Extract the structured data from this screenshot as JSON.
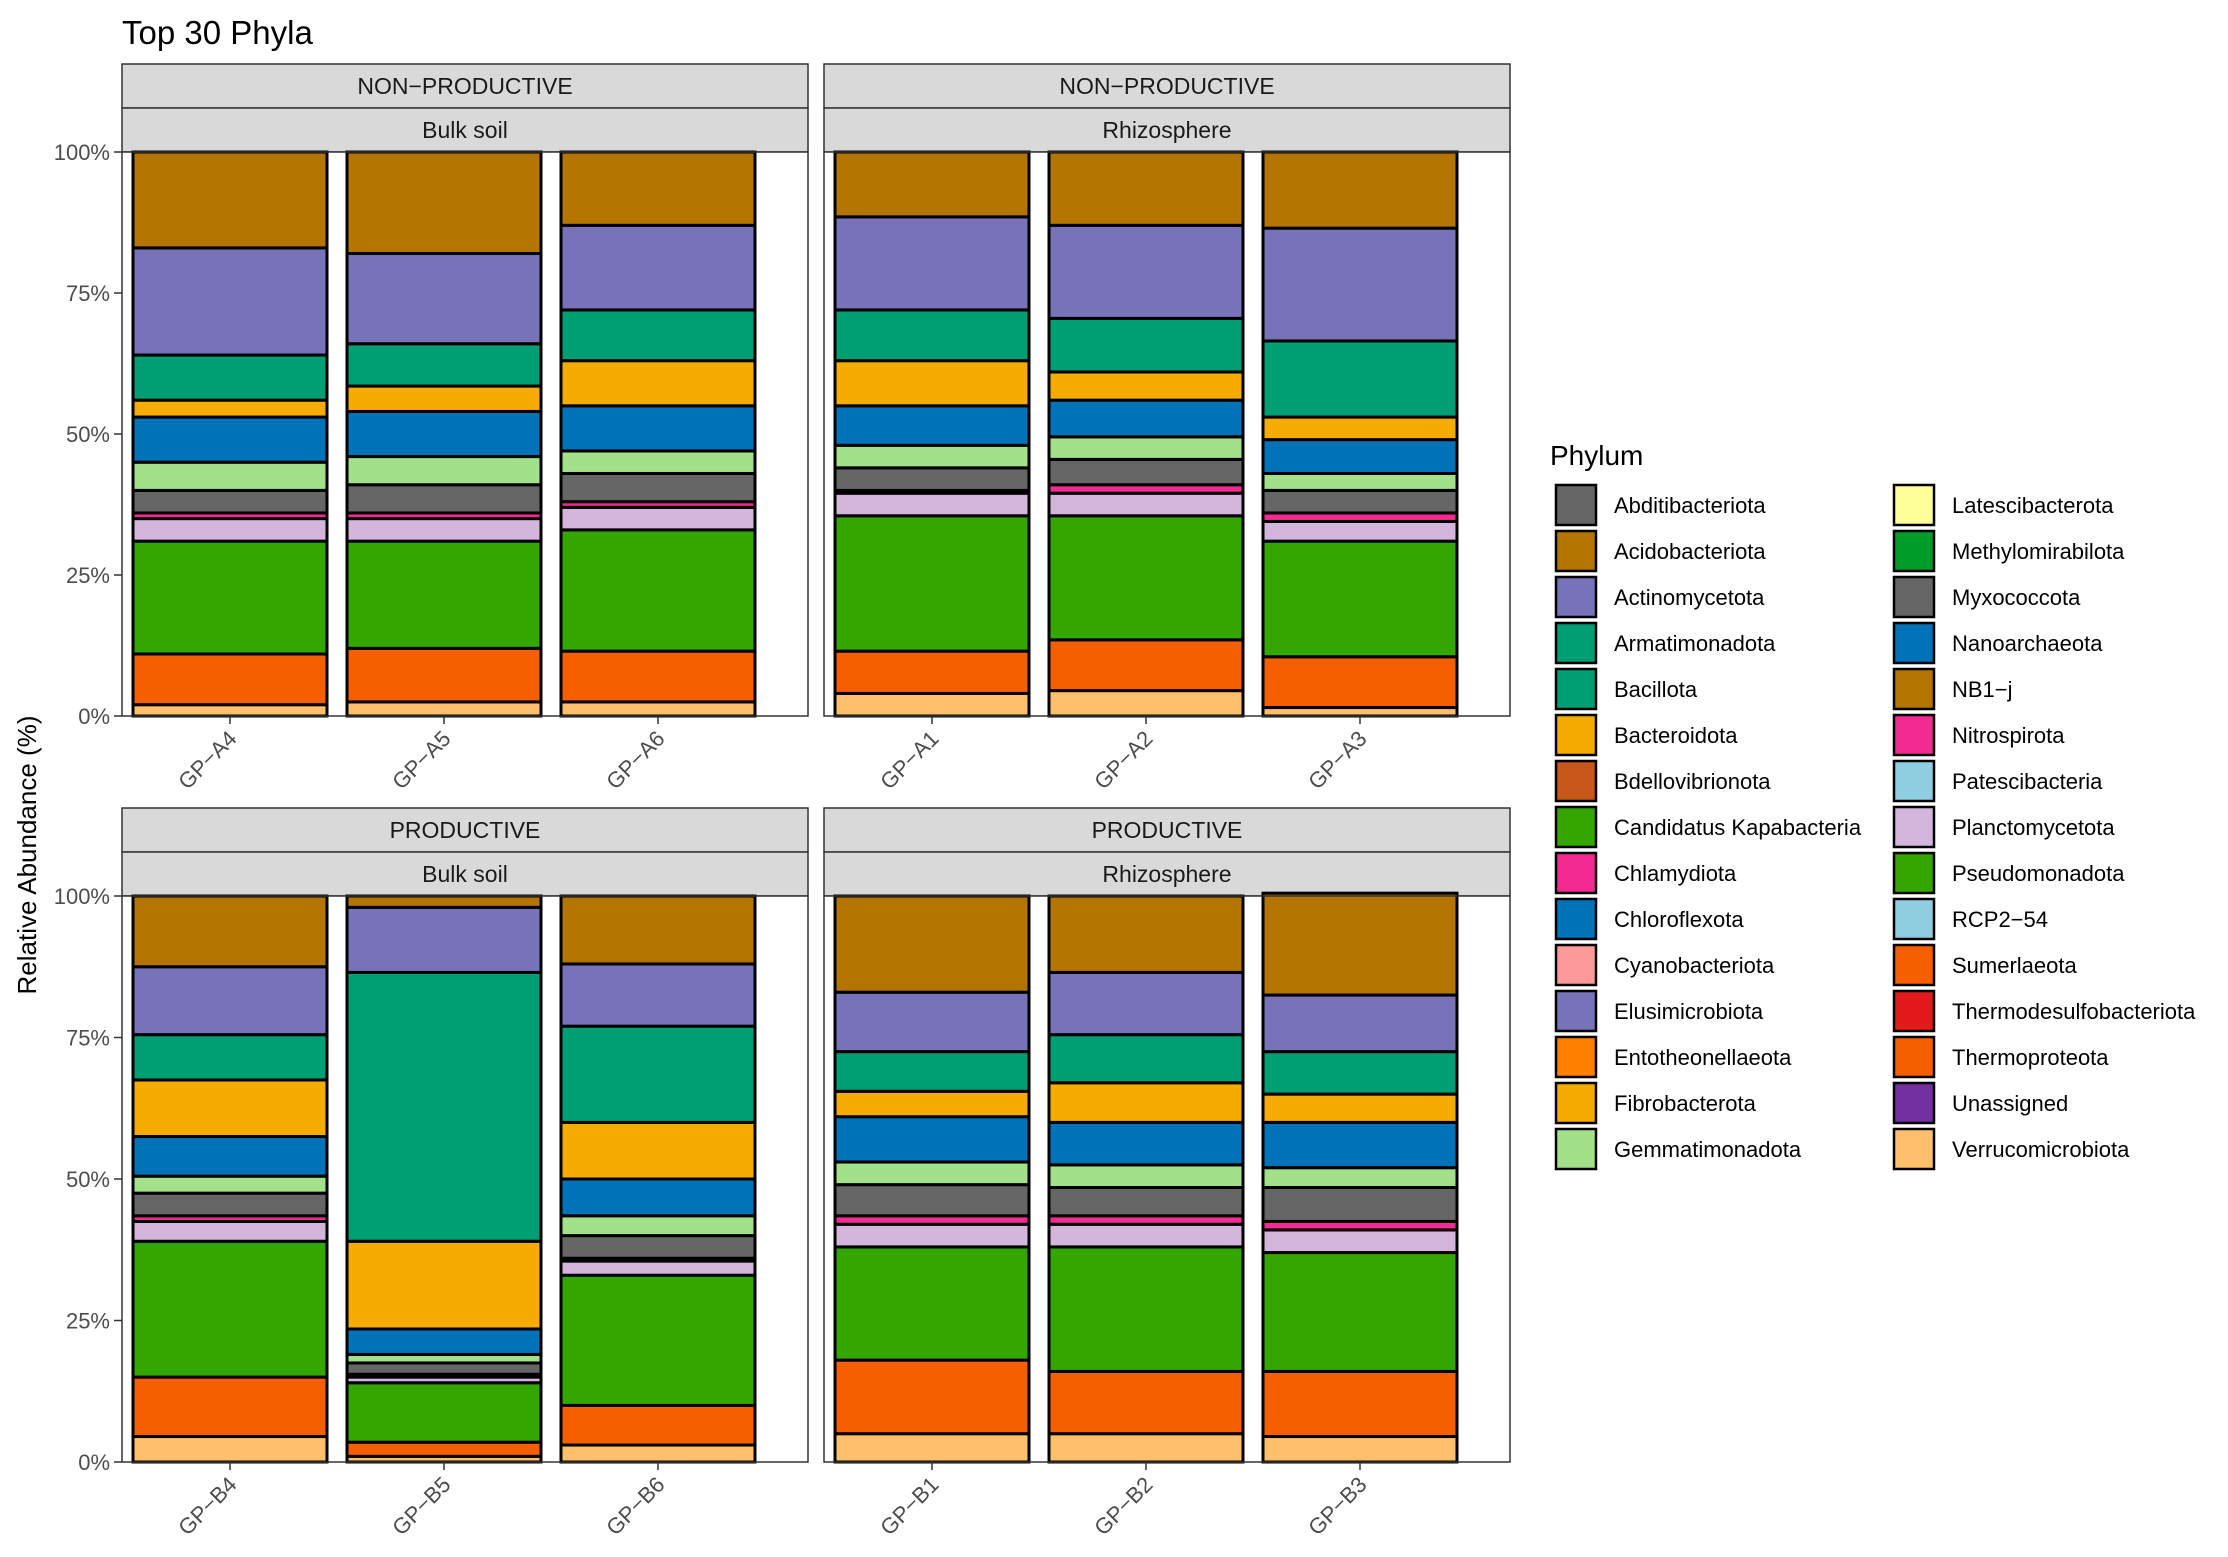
{
  "chart_data": {
    "type": "bar",
    "stacked": true,
    "title": "Top 30 Phyla",
    "ylabel": "Relative Abundance (%)",
    "xlabel": "",
    "ylim": [
      0,
      100
    ],
    "y_ticks": [
      {
        "value": 0,
        "label": "0%"
      },
      {
        "value": 25,
        "label": "25%"
      },
      {
        "value": 50,
        "label": "50%"
      },
      {
        "value": 75,
        "label": "75%"
      },
      {
        "value": 100,
        "label": "100%"
      }
    ],
    "legend_title": "Phylum",
    "legend_position": "right",
    "phyla": [
      {
        "name": "Abditibacteriota",
        "color": "#666666"
      },
      {
        "name": "Acidobacteriota",
        "color": "#b47500"
      },
      {
        "name": "Actinomycetota",
        "color": "#7873b8"
      },
      {
        "name": "Armatimonadota",
        "color": "#009e73"
      },
      {
        "name": "Bacillota",
        "color": "#009e73"
      },
      {
        "name": "Bacteroidota",
        "color": "#f5ab00"
      },
      {
        "name": "Bdellovibrionota",
        "color": "#c8571c"
      },
      {
        "name": "Candidatus Kapabacteria",
        "color": "#33a600"
      },
      {
        "name": "Chlamydiota",
        "color": "#f22b93"
      },
      {
        "name": "Chloroflexota",
        "color": "#0073b8"
      },
      {
        "name": "Cyanobacteriota",
        "color": "#fb9a99"
      },
      {
        "name": "Elusimicrobiota",
        "color": "#7873b8"
      },
      {
        "name": "Entotheonellaeota",
        "color": "#ff7f00"
      },
      {
        "name": "Fibrobacterota",
        "color": "#f5ab00"
      },
      {
        "name": "Gemmatimonadota",
        "color": "#a2e08a"
      },
      {
        "name": "Latescibacterota",
        "color": "#ffff99"
      },
      {
        "name": "Methylomirabilota",
        "color": "#009e28"
      },
      {
        "name": "Myxococcota",
        "color": "#666666"
      },
      {
        "name": "Nanoarchaeota",
        "color": "#0073b8"
      },
      {
        "name": "NB1−j",
        "color": "#b47500"
      },
      {
        "name": "Nitrospirota",
        "color": "#f22b93"
      },
      {
        "name": "Patescibacteria",
        "color": "#8fcde0"
      },
      {
        "name": "Planctomycetota",
        "color": "#d4b5dc"
      },
      {
        "name": "Pseudomonadota",
        "color": "#33a600"
      },
      {
        "name": "RCP2−54",
        "color": "#8fcde0"
      },
      {
        "name": "Sumerlaeota",
        "color": "#f55f00"
      },
      {
        "name": "Thermodesulfobacteriota",
        "color": "#e31a1c"
      },
      {
        "name": "Thermoproteota",
        "color": "#f55f00"
      },
      {
        "name": "Unassigned",
        "color": "#7330a0"
      },
      {
        "name": "Verrucomicrobiota",
        "color": "#ffbf6b"
      }
    ],
    "stack_order_bottom_to_top": [
      "Verrucomicrobiota",
      "Thermoproteota",
      "Pseudomonadota",
      "Planctomycetota",
      "Nitrospirota",
      "Myxococcota",
      "Gemmatimonadota",
      "Chloroflexota",
      "Bacteroidota",
      "Bacillota",
      "Actinomycetota",
      "Acidobacteriota"
    ],
    "panels": [
      {
        "strip_top": "NON−PRODUCTIVE",
        "strip_bottom": "Bulk soil",
        "samples": [
          {
            "name": "GP−A4",
            "values": {
              "Verrucomicrobiota": 2,
              "Thermoproteota": 9,
              "Pseudomonadota": 20,
              "Planctomycetota": 4,
              "Nitrospirota": 1,
              "Myxococcota": 4,
              "Gemmatimonadota": 5,
              "Chloroflexota": 8,
              "Bacteroidota": 3,
              "Bacillota": 8,
              "Actinomycetota": 19,
              "Acidobacteriota": 17
            }
          },
          {
            "name": "GP−A5",
            "values": {
              "Verrucomicrobiota": 2.5,
              "Thermoproteota": 9.5,
              "Pseudomonadota": 19,
              "Planctomycetota": 4,
              "Nitrospirota": 1,
              "Myxococcota": 5,
              "Gemmatimonadota": 5,
              "Chloroflexota": 8,
              "Bacteroidota": 4.5,
              "Bacillota": 7.5,
              "Actinomycetota": 16,
              "Acidobacteriota": 18
            }
          },
          {
            "name": "GP−A6",
            "values": {
              "Verrucomicrobiota": 2.5,
              "Thermoproteota": 9,
              "Pseudomonadota": 21.5,
              "Planctomycetota": 4,
              "Nitrospirota": 1,
              "Myxococcota": 5,
              "Gemmatimonadota": 4,
              "Chloroflexota": 8,
              "Bacteroidota": 8,
              "Bacillota": 9,
              "Actinomycetota": 15,
              "Acidobacteriota": 13
            }
          }
        ]
      },
      {
        "strip_top": "NON−PRODUCTIVE",
        "strip_bottom": "Rhizosphere",
        "samples": [
          {
            "name": "GP−A1",
            "values": {
              "Verrucomicrobiota": 4,
              "Thermoproteota": 7.5,
              "Pseudomonadota": 24,
              "Planctomycetota": 4,
              "Nitrospirota": 0.5,
              "Myxococcota": 4,
              "Gemmatimonadota": 4,
              "Chloroflexota": 7,
              "Bacteroidota": 8,
              "Bacillota": 9,
              "Actinomycetota": 16.5,
              "Acidobacteriota": 11.5
            }
          },
          {
            "name": "GP−A2",
            "values": {
              "Verrucomicrobiota": 4.5,
              "Thermoproteota": 9,
              "Pseudomonadota": 22,
              "Planctomycetota": 4,
              "Nitrospirota": 1.5,
              "Myxococcota": 4.5,
              "Gemmatimonadota": 4,
              "Chloroflexota": 6.5,
              "Bacteroidota": 5,
              "Bacillota": 9.5,
              "Actinomycetota": 16.5,
              "Acidobacteriota": 13
            }
          },
          {
            "name": "GP−A3",
            "values": {
              "Verrucomicrobiota": 1.5,
              "Thermoproteota": 9,
              "Pseudomonadota": 20.5,
              "Planctomycetota": 3.5,
              "Nitrospirota": 1.5,
              "Myxococcota": 4,
              "Gemmatimonadota": 3,
              "Chloroflexota": 6,
              "Bacteroidota": 4,
              "Bacillota": 13.5,
              "Actinomycetota": 20,
              "Acidobacteriota": 13.5
            }
          }
        ]
      },
      {
        "strip_top": "PRODUCTIVE",
        "strip_bottom": "Bulk soil",
        "samples": [
          {
            "name": "GP−B4",
            "values": {
              "Verrucomicrobiota": 4.5,
              "Thermoproteota": 10.5,
              "Pseudomonadota": 24,
              "Planctomycetota": 3.5,
              "Nitrospirota": 1,
              "Myxococcota": 4,
              "Gemmatimonadota": 3,
              "Chloroflexota": 7,
              "Bacteroidota": 10,
              "Bacillota": 8,
              "Actinomycetota": 12,
              "Acidobacteriota": 12.5
            }
          },
          {
            "name": "GP−B5",
            "values": {
              "Verrucomicrobiota": 1,
              "Thermoproteota": 2.5,
              "Pseudomonadota": 10.5,
              "Planctomycetota": 1,
              "Nitrospirota": 0.5,
              "Myxococcota": 2,
              "Gemmatimonadota": 1.5,
              "Chloroflexota": 4.5,
              "Bacteroidota": 15.5,
              "Bacillota": 47.5,
              "Actinomycetota": 11.5,
              "Acidobacteriota": 2
            }
          },
          {
            "name": "GP−B6",
            "values": {
              "Verrucomicrobiota": 3,
              "Thermoproteota": 7,
              "Pseudomonadota": 23,
              "Planctomycetota": 2.5,
              "Nitrospirota": 0.5,
              "Myxococcota": 4,
              "Gemmatimonadota": 3.5,
              "Chloroflexota": 6.5,
              "Bacteroidota": 10,
              "Bacillota": 17,
              "Actinomycetota": 11,
              "Acidobacteriota": 12
            }
          }
        ]
      },
      {
        "strip_top": "PRODUCTIVE",
        "strip_bottom": "Rhizosphere",
        "samples": [
          {
            "name": "GP−B1",
            "values": {
              "Verrucomicrobiota": 5,
              "Thermoproteota": 13,
              "Pseudomonadota": 20,
              "Planctomycetota": 4,
              "Nitrospirota": 1.5,
              "Myxococcota": 5.5,
              "Gemmatimonadota": 4,
              "Chloroflexota": 8,
              "Bacteroidota": 4.5,
              "Bacillota": 7,
              "Actinomycetota": 10.5,
              "Acidobacteriota": 17
            }
          },
          {
            "name": "GP−B2",
            "values": {
              "Verrucomicrobiota": 5,
              "Thermoproteota": 11,
              "Pseudomonadota": 22,
              "Planctomycetota": 4,
              "Nitrospirota": 1.5,
              "Myxococcota": 5,
              "Gemmatimonadota": 4,
              "Chloroflexota": 7.5,
              "Bacteroidota": 7,
              "Bacillota": 8.5,
              "Actinomycetota": 11,
              "Acidobacteriota": 13.5
            }
          },
          {
            "name": "GP−B3",
            "values": {
              "Verrucomicrobiota": 4.5,
              "Thermoproteota": 11.5,
              "Pseudomonadota": 21,
              "Planctomycetota": 4,
              "Nitrospirota": 1.5,
              "Myxococcota": 6,
              "Gemmatimonadota": 3.5,
              "Chloroflexota": 8,
              "Bacteroidota": 5,
              "Bacillota": 7.5,
              "Actinomycetota": 10,
              "Acidobacteriota": 18
            }
          }
        ]
      }
    ]
  }
}
